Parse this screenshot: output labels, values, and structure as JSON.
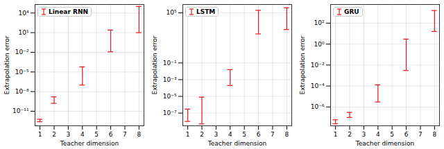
{
  "chart_data": [
    {
      "type": "errorbar",
      "x_label": "Teacher dimension",
      "y_label": "Extrapolation error",
      "x": [
        1,
        2,
        4,
        6,
        8
      ],
      "series": [
        {
          "name": "Linear RNN",
          "color": "#e41a1c",
          "low": [
            2.5e-13,
            1.6e-10,
            1e-07,
            0.012,
            10
          ],
          "high": [
            6e-13,
            1.6e-09,
            6e-05,
            25,
            100000.0
          ]
        }
      ],
      "log": "y",
      "grid": true,
      "legend": "upper left",
      "xlim": [
        0.65,
        8.35
      ],
      "xticks": [
        1,
        2,
        3,
        4,
        5,
        6,
        7,
        8
      ],
      "ylim": [
        6e-14,
        200000.0
      ],
      "yticks": [
        {
          "value": 1e-11,
          "label": "10⁻¹¹"
        },
        {
          "value": 1e-08,
          "label": "10⁻⁸"
        },
        {
          "value": 1e-05,
          "label": "10⁻⁵"
        },
        {
          "value": 0.01,
          "label": "10⁻²"
        },
        {
          "value": 10,
          "label": "10¹"
        },
        {
          "value": 10000,
          "label": "10⁴"
        }
      ]
    },
    {
      "type": "errorbar",
      "x_label": "Teacher dimension",
      "y_label": "Extrapolation error",
      "x": [
        1,
        2,
        4,
        6,
        8
      ],
      "series": [
        {
          "name": "LSTM",
          "color": "#e41a1c",
          "low": [
            1e-08,
            5e-09,
            0.0002,
            300,
            1000
          ],
          "high": [
            3e-07,
            8e-06,
            0.016,
            200000.0,
            400000.0
          ]
        }
      ],
      "log": "y",
      "grid": true,
      "legend": "upper left",
      "xlim": [
        0.65,
        8.35
      ],
      "xticks": [
        1,
        2,
        3,
        4,
        5,
        6,
        7,
        8
      ],
      "ylim": [
        3e-09,
        1000000.0
      ],
      "yticks": [
        {
          "value": 1e-07,
          "label": "10⁻⁷"
        },
        {
          "value": 1e-05,
          "label": "10⁻⁵"
        },
        {
          "value": 0.001,
          "label": "10⁻³"
        },
        {
          "value": 0.1,
          "label": "10⁻¹"
        },
        {
          "value": 100000,
          "label": "10⁵"
        }
      ]
    },
    {
      "type": "errorbar",
      "x_label": "Teacher dimension",
      "y_label": "Extrapolation error",
      "x": [
        1,
        2,
        4,
        6,
        8
      ],
      "series": [
        {
          "name": "GRU",
          "color": "#e41a1c",
          "low": [
            2.5e-08,
            1e-07,
            3e-06,
            0.003,
            16
          ],
          "high": [
            6e-08,
            3e-07,
            0.00013,
            3,
            1600
          ]
        }
      ],
      "log": "y",
      "grid": true,
      "legend": "upper left",
      "xlim": [
        0.65,
        8.35
      ],
      "xticks": [
        1,
        2,
        3,
        4,
        5,
        6,
        7,
        8
      ],
      "ylim": [
        1.6e-08,
        6000
      ],
      "yticks": [
        {
          "value": 1e-06,
          "label": "10⁻⁶"
        },
        {
          "value": 0.0001,
          "label": "10⁻⁴"
        },
        {
          "value": 0.01,
          "label": "10⁻²"
        },
        {
          "value": 1,
          "label": "10⁰"
        },
        {
          "value": 100,
          "label": "10²"
        }
      ]
    }
  ]
}
